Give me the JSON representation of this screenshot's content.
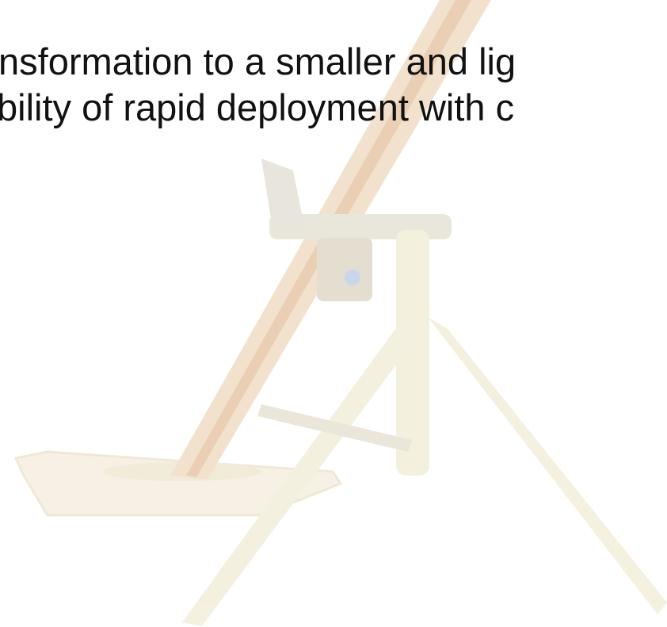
{
  "slide": {
    "lines": [
      "nsformation to a smaller and lig",
      "bility of rapid deployment with c"
    ]
  }
}
